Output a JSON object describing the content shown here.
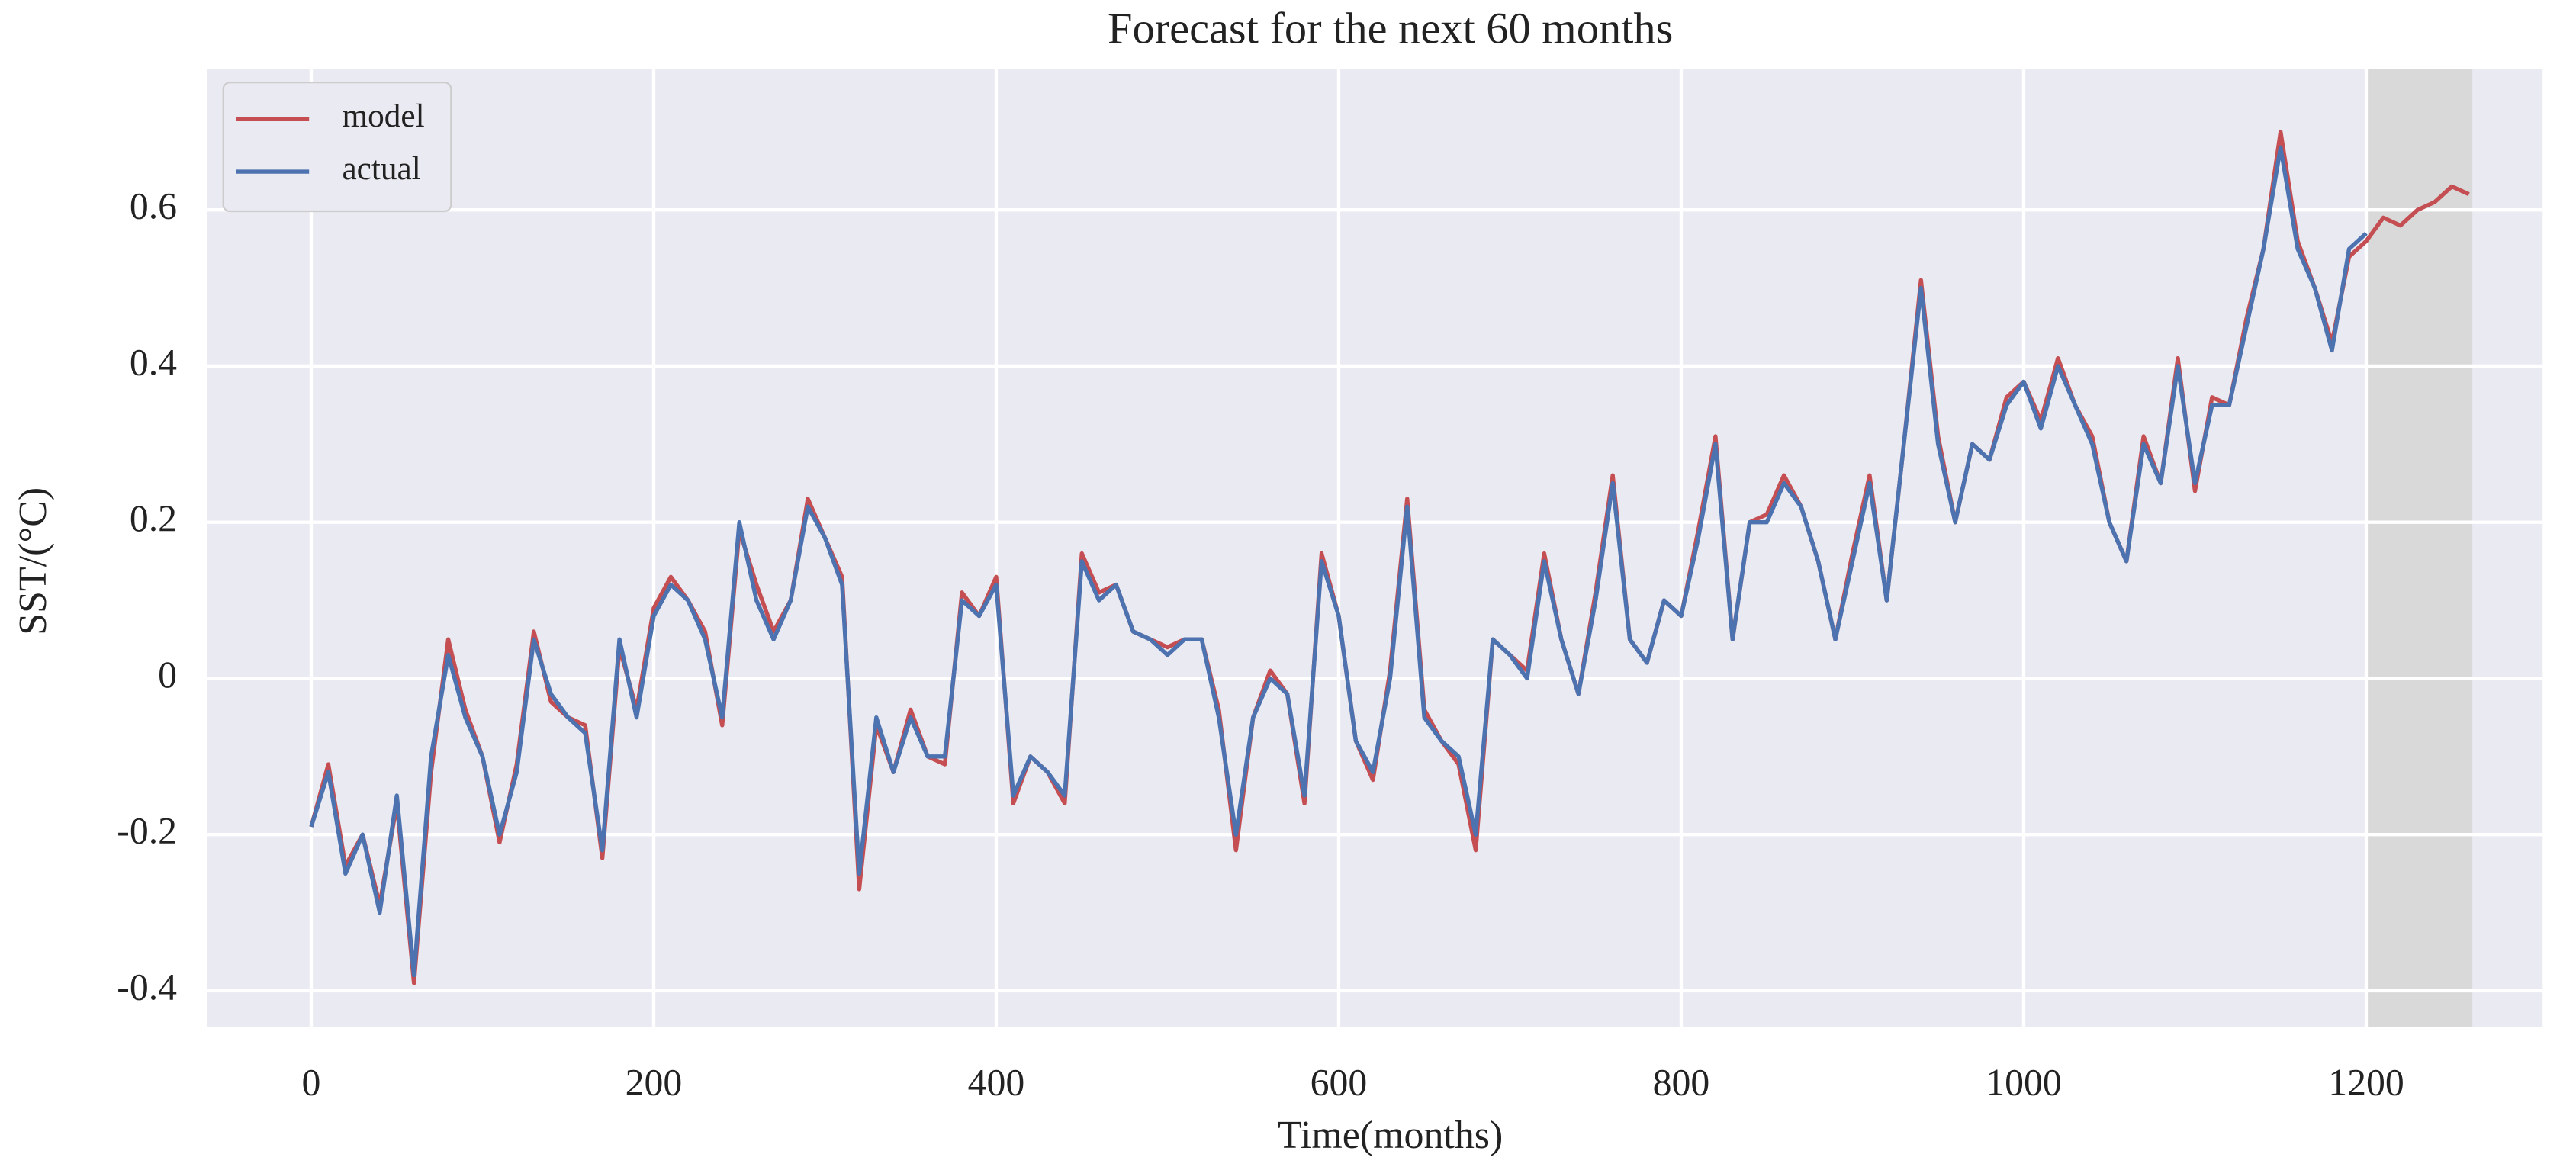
{
  "chart_data": {
    "type": "line",
    "title": "Forecast for the next 60 months",
    "x_label": "Time(months)",
    "y_label": "SST/(°C)",
    "x": [
      0,
      10,
      20,
      30,
      40,
      50,
      60,
      70,
      80,
      90,
      100,
      110,
      120,
      130,
      140,
      150,
      160,
      170,
      180,
      190,
      200,
      210,
      220,
      230,
      240,
      250,
      260,
      270,
      280,
      290,
      300,
      310,
      320,
      330,
      340,
      350,
      360,
      370,
      380,
      390,
      400,
      410,
      420,
      430,
      440,
      450,
      460,
      470,
      480,
      490,
      500,
      510,
      520,
      530,
      540,
      550,
      560,
      570,
      580,
      590,
      600,
      610,
      620,
      630,
      640,
      650,
      660,
      670,
      680,
      690,
      700,
      710,
      720,
      730,
      740,
      750,
      760,
      770,
      780,
      790,
      800,
      810,
      820,
      830,
      840,
      850,
      860,
      870,
      880,
      890,
      900,
      910,
      920,
      930,
      940,
      950,
      960,
      970,
      980,
      990,
      1000,
      1010,
      1020,
      1030,
      1040,
      1050,
      1060,
      1070,
      1080,
      1090,
      1100,
      1110,
      1120,
      1130,
      1140,
      1150,
      1160,
      1170,
      1180,
      1190,
      1200,
      1210,
      1220,
      1230,
      1240,
      1250,
      1260
    ],
    "series": [
      {
        "name": "model",
        "color": "#c44e52",
        "values": [
          -0.19,
          -0.11,
          -0.24,
          -0.2,
          -0.29,
          -0.16,
          -0.39,
          -0.12,
          0.05,
          -0.04,
          -0.1,
          -0.21,
          -0.11,
          0.06,
          -0.03,
          -0.05,
          -0.06,
          -0.23,
          0.04,
          -0.04,
          0.09,
          0.13,
          0.1,
          0.06,
          -0.06,
          0.19,
          0.12,
          0.06,
          0.1,
          0.23,
          0.18,
          0.13,
          -0.27,
          -0.06,
          -0.12,
          -0.04,
          -0.1,
          -0.11,
          0.11,
          0.08,
          0.13,
          -0.16,
          -0.1,
          -0.12,
          -0.16,
          0.16,
          0.11,
          0.12,
          0.06,
          0.05,
          0.04,
          0.05,
          0.05,
          -0.04,
          -0.22,
          -0.05,
          0.01,
          -0.02,
          -0.16,
          0.16,
          0.08,
          -0.08,
          -0.13,
          0.01,
          0.23,
          -0.04,
          -0.08,
          -0.11,
          -0.22,
          0.05,
          0.03,
          0.01,
          0.16,
          0.05,
          -0.02,
          0.11,
          0.26,
          0.05,
          0.02,
          0.1,
          0.08,
          0.19,
          0.31,
          0.05,
          0.2,
          0.21,
          0.26,
          0.22,
          0.15,
          0.05,
          0.16,
          0.26,
          0.1,
          0.3,
          0.51,
          0.31,
          0.2,
          0.3,
          0.28,
          0.36,
          0.38,
          0.33,
          0.41,
          0.35,
          0.31,
          0.2,
          0.15,
          0.31,
          0.25,
          0.41,
          0.24,
          0.36,
          0.35,
          0.46,
          0.55,
          0.7,
          0.56,
          0.5,
          0.43,
          0.54,
          0.56,
          0.59,
          0.58,
          0.6,
          0.61,
          0.63,
          0.62
        ]
      },
      {
        "name": "actual",
        "color": "#4c72b0",
        "values": [
          -0.19,
          -0.12,
          -0.25,
          -0.2,
          -0.3,
          -0.15,
          -0.38,
          -0.1,
          0.03,
          -0.05,
          -0.1,
          -0.2,
          -0.12,
          0.05,
          -0.02,
          -0.05,
          -0.07,
          -0.22,
          0.05,
          -0.05,
          0.08,
          0.12,
          0.1,
          0.05,
          -0.05,
          0.2,
          0.1,
          0.05,
          0.1,
          0.22,
          0.18,
          0.12,
          -0.25,
          -0.05,
          -0.12,
          -0.05,
          -0.1,
          -0.1,
          0.1,
          0.08,
          0.12,
          -0.15,
          -0.1,
          -0.12,
          -0.15,
          0.15,
          0.1,
          0.12,
          0.06,
          0.05,
          0.03,
          0.05,
          0.05,
          -0.05,
          -0.2,
          -0.05,
          0.0,
          -0.02,
          -0.15,
          0.15,
          0.08,
          -0.08,
          -0.12,
          0.0,
          0.22,
          -0.05,
          -0.08,
          -0.1,
          -0.2,
          0.05,
          0.03,
          0.0,
          0.15,
          0.05,
          -0.02,
          0.1,
          0.25,
          0.05,
          0.02,
          0.1,
          0.08,
          0.18,
          0.3,
          0.05,
          0.2,
          0.2,
          0.25,
          0.22,
          0.15,
          0.05,
          0.15,
          0.25,
          0.1,
          0.3,
          0.5,
          0.3,
          0.2,
          0.3,
          0.28,
          0.35,
          0.38,
          0.32,
          0.4,
          0.35,
          0.3,
          0.2,
          0.15,
          0.3,
          0.25,
          0.4,
          0.25,
          0.35,
          0.35,
          0.45,
          0.55,
          0.68,
          0.55,
          0.5,
          0.42,
          0.55,
          0.57,
          null,
          null,
          null,
          null,
          null,
          null
        ]
      }
    ],
    "xlim": [
      -61,
      1303
    ],
    "ylim": [
      -0.446,
      0.78
    ],
    "xticks": [
      0,
      200,
      400,
      600,
      800,
      1000,
      1200
    ],
    "yticks": [
      -0.4,
      -0.2,
      0.0,
      0.2,
      0.4,
      0.6
    ],
    "shaded_xrange": [
      1200,
      1262
    ],
    "grid": true,
    "legend": "upper left"
  }
}
